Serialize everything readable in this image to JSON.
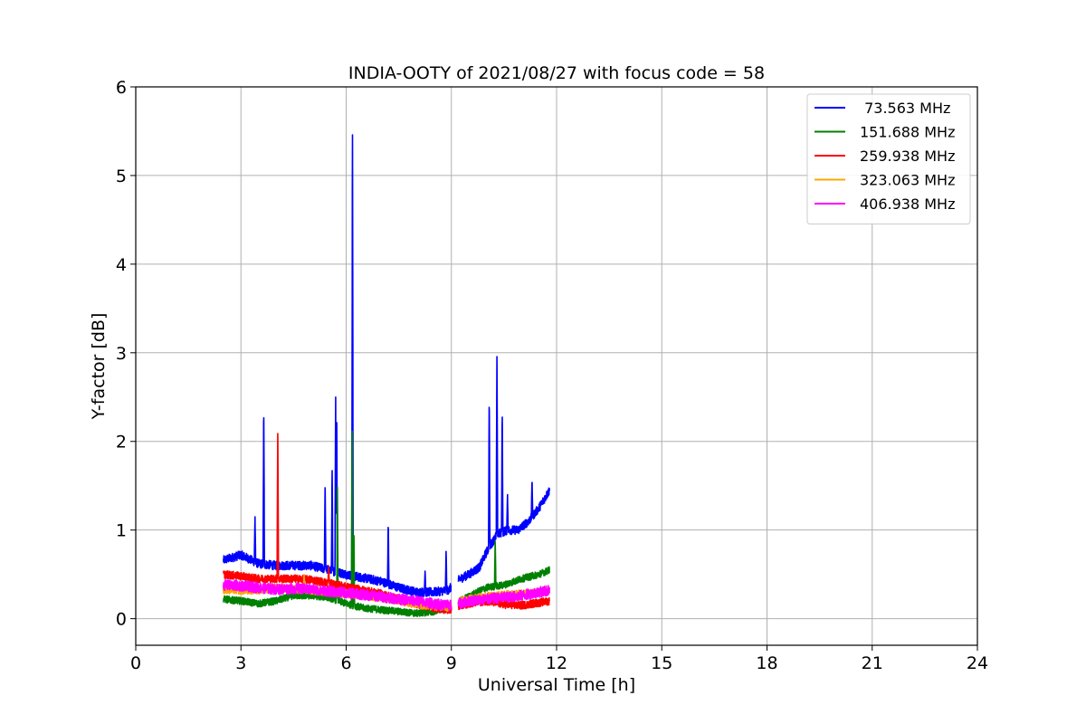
{
  "chart_data": {
    "type": "line",
    "title": "INDIA-OOTY of 2021/08/27 with focus code = 58",
    "xlabel": "Universal Time [h]",
    "ylabel": "Y-factor [dB]",
    "xlim": [
      0,
      24
    ],
    "ylim": [
      -0.3,
      6
    ],
    "xticks": [
      0,
      3,
      6,
      9,
      12,
      15,
      18,
      21,
      24
    ],
    "yticks": [
      0,
      1,
      2,
      3,
      4,
      5,
      6
    ],
    "grid": true,
    "legend_position": "top-right",
    "series": [
      {
        "name": " 73.563 MHz",
        "color": "#0000ff",
        "base": [
          [
            2.5,
            0.66
          ],
          [
            3.0,
            0.72
          ],
          [
            3.5,
            0.62
          ],
          [
            4.0,
            0.6
          ],
          [
            4.5,
            0.6
          ],
          [
            5.0,
            0.6
          ],
          [
            5.5,
            0.55
          ],
          [
            6.0,
            0.5
          ],
          [
            6.5,
            0.46
          ],
          [
            7.0,
            0.42
          ],
          [
            7.5,
            0.35
          ],
          [
            8.0,
            0.3
          ],
          [
            8.5,
            0.3
          ],
          [
            8.9,
            0.32
          ],
          [
            9.25,
            0.45
          ],
          [
            9.5,
            0.5
          ],
          [
            9.8,
            0.58
          ],
          [
            10.0,
            0.75
          ],
          [
            10.3,
            0.95
          ],
          [
            10.6,
            1.0
          ],
          [
            10.9,
            1.0
          ],
          [
            11.2,
            1.1
          ],
          [
            11.5,
            1.25
          ],
          [
            11.8,
            1.45
          ]
        ],
        "noise": 0.05,
        "spikes": [
          [
            3.4,
            1.15
          ],
          [
            3.65,
            2.45
          ],
          [
            5.4,
            1.58
          ],
          [
            5.6,
            1.7
          ],
          [
            5.7,
            2.55
          ],
          [
            5.73,
            2.3
          ],
          [
            6.18,
            5.72
          ],
          [
            7.2,
            1.1
          ],
          [
            8.25,
            0.55
          ],
          [
            8.85,
            0.77
          ],
          [
            10.08,
            2.56
          ],
          [
            10.3,
            3.12
          ],
          [
            10.45,
            2.38
          ],
          [
            10.6,
            1.4
          ],
          [
            11.3,
            1.58
          ]
        ]
      },
      {
        "name": "151.688 MHz",
        "color": "#008000",
        "base": [
          [
            2.5,
            0.22
          ],
          [
            3.0,
            0.2
          ],
          [
            3.5,
            0.17
          ],
          [
            4.0,
            0.2
          ],
          [
            4.5,
            0.26
          ],
          [
            5.0,
            0.26
          ],
          [
            5.5,
            0.24
          ],
          [
            6.0,
            0.17
          ],
          [
            6.5,
            0.12
          ],
          [
            7.0,
            0.1
          ],
          [
            7.5,
            0.08
          ],
          [
            8.0,
            0.06
          ],
          [
            8.5,
            0.08
          ],
          [
            8.9,
            0.12
          ],
          [
            9.25,
            0.2
          ],
          [
            9.5,
            0.25
          ],
          [
            10.0,
            0.35
          ],
          [
            10.5,
            0.38
          ],
          [
            11.0,
            0.45
          ],
          [
            11.5,
            0.5
          ],
          [
            11.8,
            0.55
          ]
        ],
        "noise": 0.04,
        "spikes": [
          [
            5.75,
            1.55
          ],
          [
            6.17,
            2.33
          ],
          [
            6.22,
            1.0
          ],
          [
            10.25,
            0.9
          ]
        ]
      },
      {
        "name": "259.938 MHz",
        "color": "#ff0000",
        "base": [
          [
            2.5,
            0.5
          ],
          [
            3.0,
            0.48
          ],
          [
            3.5,
            0.45
          ],
          [
            4.0,
            0.45
          ],
          [
            4.5,
            0.45
          ],
          [
            5.0,
            0.44
          ],
          [
            5.5,
            0.4
          ],
          [
            6.0,
            0.36
          ],
          [
            6.5,
            0.32
          ],
          [
            7.0,
            0.28
          ],
          [
            7.5,
            0.22
          ],
          [
            8.0,
            0.17
          ],
          [
            8.5,
            0.12
          ],
          [
            8.9,
            0.1
          ],
          [
            9.25,
            0.15
          ],
          [
            9.5,
            0.17
          ],
          [
            10.0,
            0.2
          ],
          [
            10.5,
            0.16
          ],
          [
            11.0,
            0.15
          ],
          [
            11.5,
            0.18
          ],
          [
            11.8,
            0.2
          ]
        ],
        "noise": 0.045,
        "spikes": [
          [
            4.05,
            2.27
          ],
          [
            5.5,
            0.6
          ]
        ]
      },
      {
        "name": "323.063 MHz",
        "color": "#ffa500",
        "base": [
          [
            2.5,
            0.33
          ],
          [
            3.0,
            0.32
          ],
          [
            3.5,
            0.32
          ],
          [
            4.0,
            0.35
          ],
          [
            4.5,
            0.34
          ],
          [
            5.0,
            0.32
          ],
          [
            5.5,
            0.3
          ],
          [
            6.0,
            0.28
          ],
          [
            6.5,
            0.26
          ],
          [
            7.0,
            0.24
          ],
          [
            7.5,
            0.2
          ],
          [
            8.0,
            0.16
          ],
          [
            8.5,
            0.14
          ],
          [
            8.9,
            0.13
          ],
          [
            9.25,
            0.2
          ],
          [
            9.5,
            0.22
          ],
          [
            10.0,
            0.25
          ],
          [
            10.5,
            0.27
          ],
          [
            11.0,
            0.28
          ],
          [
            11.5,
            0.3
          ],
          [
            11.8,
            0.32
          ]
        ],
        "noise": 0.045,
        "spikes": [
          [
            4.8,
            0.5
          ]
        ]
      },
      {
        "name": "406.938 MHz",
        "color": "#ff00ff",
        "base": [
          [
            2.5,
            0.38
          ],
          [
            3.0,
            0.37
          ],
          [
            3.5,
            0.35
          ],
          [
            4.0,
            0.33
          ],
          [
            4.5,
            0.34
          ],
          [
            5.0,
            0.33
          ],
          [
            5.5,
            0.31
          ],
          [
            6.0,
            0.29
          ],
          [
            6.5,
            0.27
          ],
          [
            7.0,
            0.25
          ],
          [
            7.5,
            0.22
          ],
          [
            8.0,
            0.2
          ],
          [
            8.5,
            0.17
          ],
          [
            8.9,
            0.15
          ],
          [
            9.25,
            0.17
          ],
          [
            9.5,
            0.2
          ],
          [
            10.0,
            0.22
          ],
          [
            10.5,
            0.24
          ],
          [
            11.0,
            0.26
          ],
          [
            11.5,
            0.3
          ],
          [
            11.8,
            0.32
          ]
        ],
        "noise": 0.06,
        "spikes": []
      }
    ],
    "gap": [
      9.0,
      9.2
    ]
  }
}
